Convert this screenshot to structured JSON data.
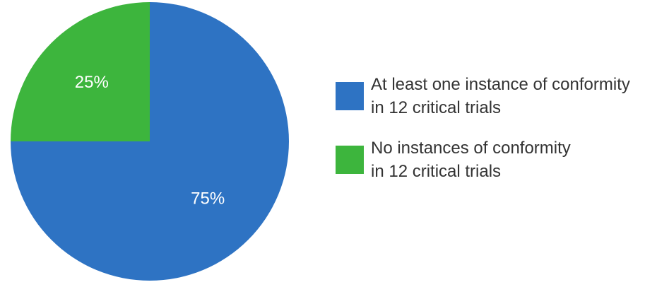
{
  "chart_data": {
    "type": "pie",
    "categories": [
      "At least one instance of conformity\nin 12 critical trials",
      "No instances of conformity\nin 12 critical trials"
    ],
    "values": [
      75,
      25
    ],
    "value_labels": [
      "75%",
      "25%"
    ],
    "colors": [
      "#2e73c3",
      "#3db53d"
    ],
    "legend": "right"
  }
}
